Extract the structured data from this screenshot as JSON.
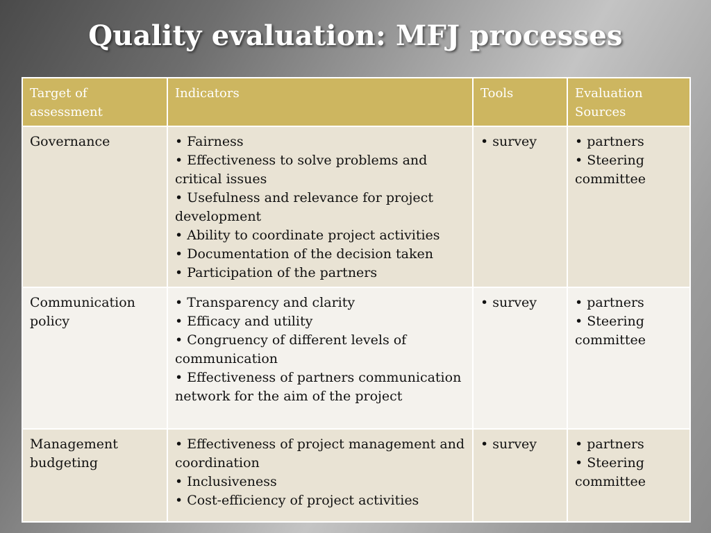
{
  "slide": {
    "title": "Quality evaluation: MFJ processes"
  },
  "table": {
    "headers": {
      "target": "Target of assessment",
      "indicators": "Indicators",
      "tools": "Tools",
      "sources": "Evaluation Sources"
    },
    "rows": [
      {
        "target": "Governance",
        "indicators": [
          "Fairness",
          "Effectiveness to solve problems and critical issues",
          "Usefulness and relevance for project development",
          "Ability to coordinate project activities",
          "Documentation of the decision taken",
          "Participation of the partners"
        ],
        "tools": [
          "survey"
        ],
        "sources": [
          "partners",
          "Steering committee"
        ]
      },
      {
        "target": "Communication policy",
        "indicators": [
          "Transparency and clarity",
          "Efficacy and utility",
          "Congruency of different levels of communication",
          "Effectiveness of partners communication network for the aim of the project"
        ],
        "tools": [
          "survey"
        ],
        "sources": [
          "partners",
          "Steering committee"
        ]
      },
      {
        "target": "Management budgeting",
        "indicators": [
          "Effectiveness of project management and coordination",
          "Inclusiveness",
          "Cost-efficiency of project activities"
        ],
        "tools": [
          "survey"
        ],
        "sources": [
          "partners",
          "Steering committee"
        ]
      }
    ]
  },
  "colors": {
    "header_bg": "#cdb660",
    "row_odd_bg": "#e9e3d4",
    "row_even_bg": "#f4f2ed"
  }
}
